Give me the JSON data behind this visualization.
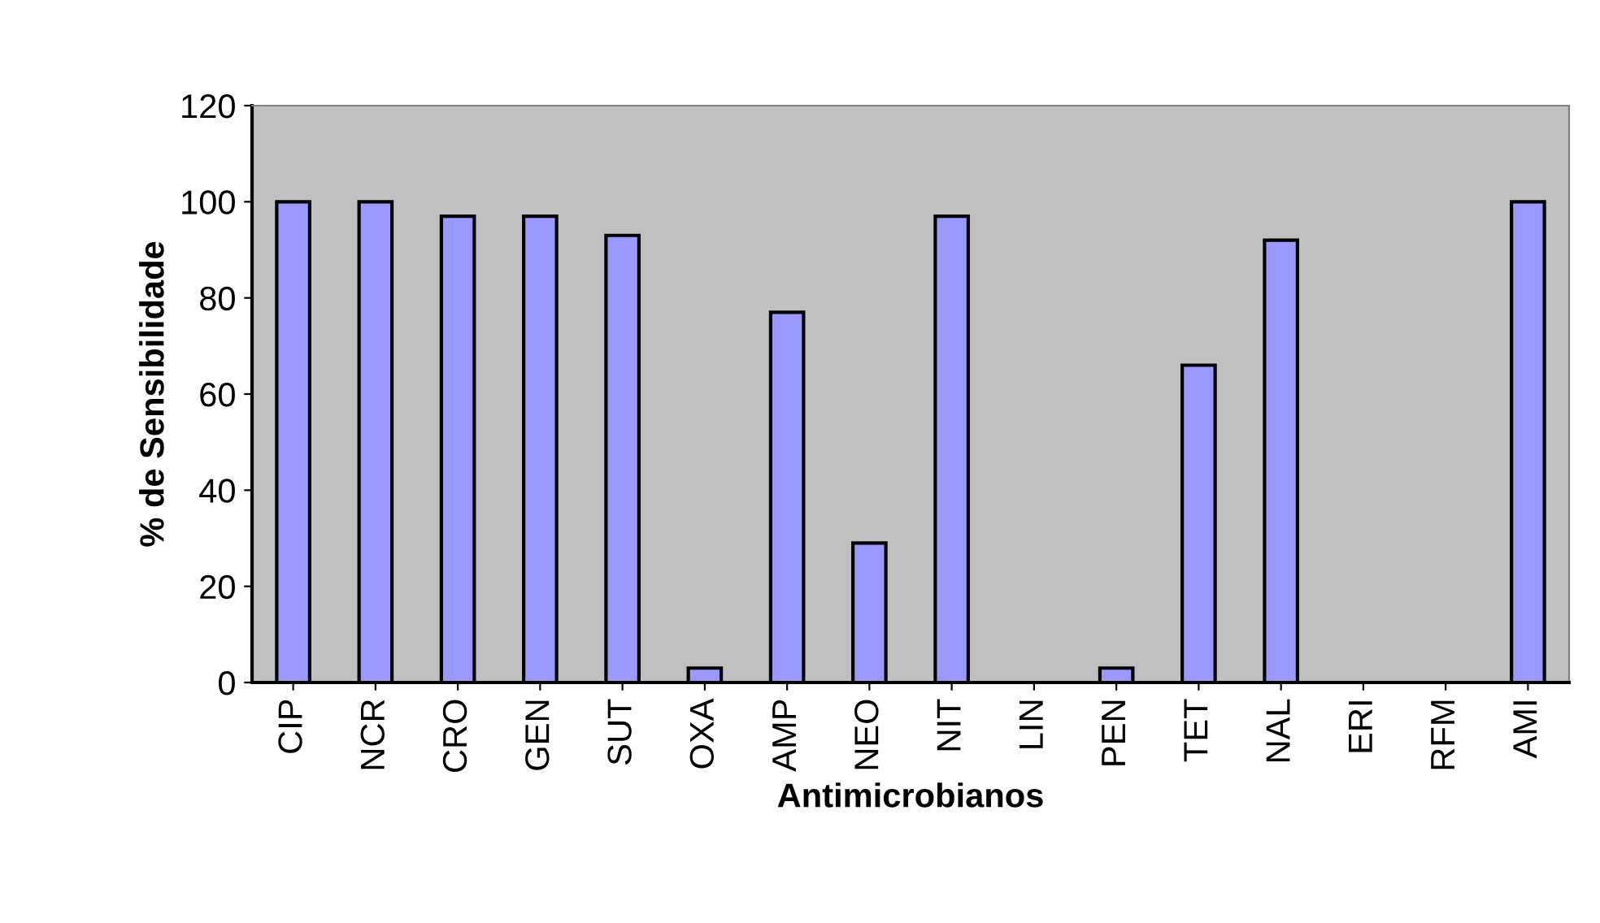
{
  "chart_data": {
    "type": "bar",
    "xlabel": "Antimicrobianos",
    "ylabel": "% de Sensibilidade",
    "categories": [
      "CIP",
      "NCR",
      "CRO",
      "GEN",
      "SUT",
      "OXA",
      "AMP",
      "NEO",
      "NIT",
      "LIN",
      "PEN",
      "TET",
      "NAL",
      "ERI",
      "RFM",
      "AMI"
    ],
    "values": [
      100,
      100,
      97,
      97,
      93,
      3,
      77,
      29,
      97,
      0,
      3,
      66,
      92,
      0,
      0,
      100
    ],
    "color": "#9999ff",
    "ylim": [
      0,
      120
    ],
    "yticks": [
      0,
      20,
      40,
      60,
      80,
      100,
      120
    ],
    "grid": false
  }
}
